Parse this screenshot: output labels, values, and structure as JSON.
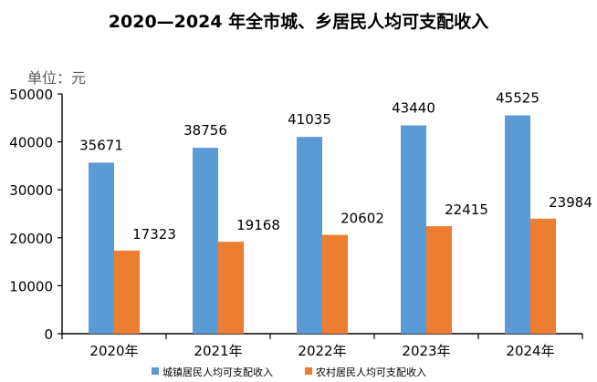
{
  "chart_data": {
    "type": "bar",
    "title": "2020—2024 年全市城、乡居民人均可支配收入",
    "unit_label": "单位：元",
    "categories": [
      "2020年",
      "2021年",
      "2022年",
      "2023年",
      "2024年"
    ],
    "series": [
      {
        "name": "城镇居民人均可支配收入",
        "values": [
          35671,
          38756,
          41035,
          43440,
          45525
        ],
        "color": "#5b9bd5"
      },
      {
        "name": "农村居民人均可支配收入",
        "values": [
          17323,
          19168,
          20602,
          22415,
          23984
        ],
        "color": "#ed7d31"
      }
    ],
    "ylim": [
      0,
      50000
    ],
    "yticks": [
      0,
      10000,
      20000,
      30000,
      40000,
      50000
    ],
    "xlabel": "",
    "ylabel": "",
    "legend": "bottom",
    "grid": false
  }
}
